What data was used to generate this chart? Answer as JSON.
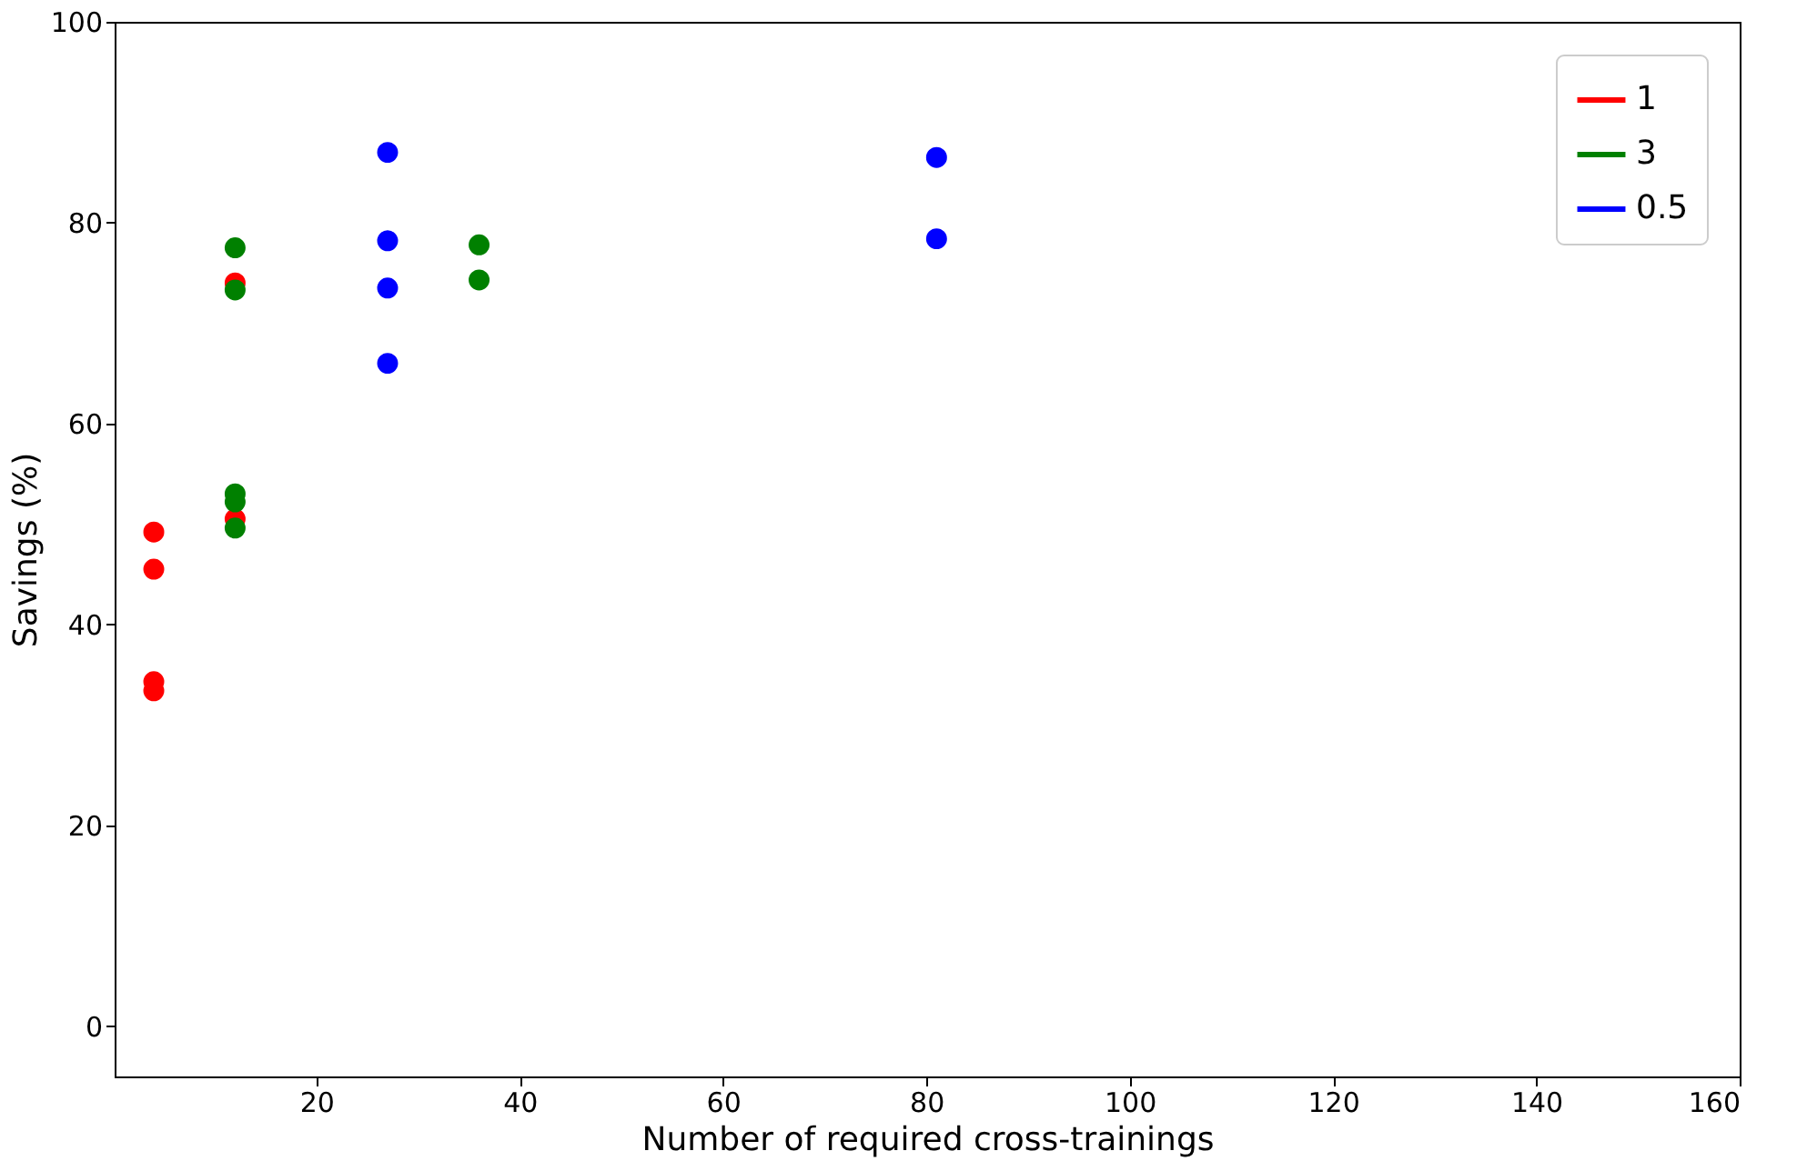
{
  "chart_data": {
    "type": "scatter",
    "xlabel": "Number of required cross-trainings",
    "ylabel": "Savings (%)",
    "xlim": [
      0.15,
      160
    ],
    "xticks": [
      20,
      40,
      60,
      80,
      100,
      120,
      140,
      160
    ],
    "ylim": [
      -5,
      100
    ],
    "yticks": [
      0,
      20,
      40,
      60,
      80,
      100
    ],
    "grid": false,
    "legend": "top right",
    "marker": "circle",
    "series": [
      {
        "name": "1",
        "color": "#ff0000",
        "x": [
          4,
          4,
          4,
          4,
          12,
          12
        ],
        "values": [
          49.2,
          45.5,
          34.3,
          33.4,
          74.0,
          50.5
        ]
      },
      {
        "name": "3",
        "color": "#008000",
        "x": [
          12,
          12,
          12,
          12,
          12,
          36,
          36
        ],
        "values": [
          77.5,
          73.3,
          53.0,
          52.2,
          49.6,
          77.8,
          74.3
        ]
      },
      {
        "name": "0.5",
        "color": "#0000ff",
        "x": [
          27,
          27,
          27,
          27,
          81,
          81
        ],
        "values": [
          87.0,
          78.2,
          73.5,
          66.0,
          86.5,
          78.4
        ]
      }
    ]
  }
}
